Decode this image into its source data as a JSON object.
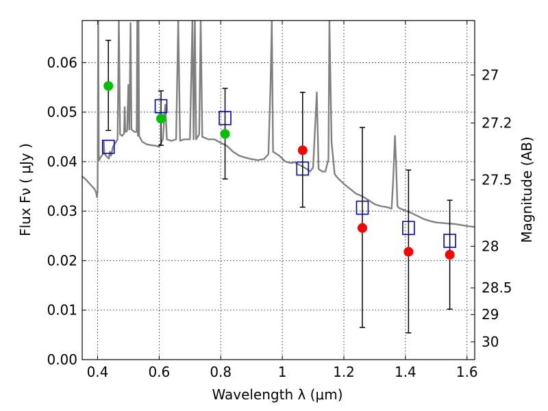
{
  "chart_data": {
    "type": "scatter",
    "xlabel": "Wavelength  λ (μm)",
    "ylabel": "Flux  Fν  ( μJy )",
    "y2label": "Magnitude (AB)",
    "xlim": [
      0.35,
      1.625
    ],
    "ylim": [
      0.0,
      0.0685
    ],
    "grid": true,
    "x_ticks": [
      0.4,
      0.6,
      0.8,
      1.0,
      1.2,
      1.4,
      1.6
    ],
    "x_tick_labels": [
      "0.4",
      "0.6",
      "0.8",
      "1",
      "1.2",
      "1.4",
      "1.6"
    ],
    "y_ticks": [
      0.0,
      0.01,
      0.02,
      0.03,
      0.04,
      0.05,
      0.06
    ],
    "y_tick_labels": [
      "0.00",
      "0.01",
      "0.02",
      "0.03",
      "0.04",
      "0.05",
      "0.06"
    ],
    "y2_ticks": [
      {
        "label": "27",
        "flux": 0.0575
      },
      {
        "label": "27.2",
        "flux": 0.0478
      },
      {
        "label": "27.5",
        "flux": 0.0363
      },
      {
        "label": "28",
        "flux": 0.0229
      },
      {
        "label": "28.5",
        "flux": 0.0145
      },
      {
        "label": "29",
        "flux": 0.0091
      },
      {
        "label": "30",
        "flux": 0.0036
      }
    ],
    "observed_points": [
      {
        "x": 0.435,
        "y": 0.0553,
        "err_low": 0.0463,
        "err_high": 0.0645,
        "color": "#00c000"
      },
      {
        "x": 0.606,
        "y": 0.0487,
        "err_low": 0.0433,
        "err_high": 0.0543,
        "color": "#00c000"
      },
      {
        "x": 0.814,
        "y": 0.0456,
        "err_low": 0.0365,
        "err_high": 0.0548,
        "color": "#00c000"
      },
      {
        "x": 1.066,
        "y": 0.0423,
        "err_low": 0.0308,
        "err_high": 0.054,
        "color": "#ff0000"
      },
      {
        "x": 1.26,
        "y": 0.0266,
        "err_low": 0.0065,
        "err_high": 0.0469,
        "color": "#ff0000"
      },
      {
        "x": 1.41,
        "y": 0.0218,
        "err_low": 0.0054,
        "err_high": 0.0383,
        "color": "#ff0000"
      },
      {
        "x": 1.544,
        "y": 0.0212,
        "err_low": 0.0102,
        "err_high": 0.0322,
        "color": "#ff0000"
      }
    ],
    "model_points": [
      {
        "x": 0.435,
        "y": 0.043
      },
      {
        "x": 0.606,
        "y": 0.0512
      },
      {
        "x": 0.814,
        "y": 0.0488
      },
      {
        "x": 1.066,
        "y": 0.0386
      },
      {
        "x": 1.26,
        "y": 0.0307
      },
      {
        "x": 1.41,
        "y": 0.0266
      },
      {
        "x": 1.544,
        "y": 0.024
      }
    ],
    "model_spectrum": [
      [
        0.35,
        0.037
      ],
      [
        0.36,
        0.0365
      ],
      [
        0.375,
        0.0355
      ],
      [
        0.385,
        0.0348
      ],
      [
        0.39,
        0.0345
      ],
      [
        0.395,
        0.0338
      ],
      [
        0.398,
        0.0328
      ],
      [
        0.4,
        0.034
      ],
      [
        0.402,
        0.0685
      ],
      [
        0.404,
        0.0402
      ],
      [
        0.41,
        0.0409
      ],
      [
        0.418,
        0.0416
      ],
      [
        0.42,
        0.044
      ],
      [
        0.422,
        0.0416
      ],
      [
        0.43,
        0.041
      ],
      [
        0.437,
        0.0406
      ],
      [
        0.44,
        0.042
      ],
      [
        0.444,
        0.0412
      ],
      [
        0.45,
        0.043
      ],
      [
        0.465,
        0.0445
      ],
      [
        0.469,
        0.0685
      ],
      [
        0.473,
        0.0455
      ],
      [
        0.48,
        0.0452
      ],
      [
        0.486,
        0.0457
      ],
      [
        0.488,
        0.051
      ],
      [
        0.49,
        0.046
      ],
      [
        0.496,
        0.0462
      ],
      [
        0.5,
        0.0555
      ],
      [
        0.503,
        0.0465
      ],
      [
        0.507,
        0.068
      ],
      [
        0.51,
        0.0465
      ],
      [
        0.52,
        0.046
      ],
      [
        0.527,
        0.046
      ],
      [
        0.529,
        0.0685
      ],
      [
        0.531,
        0.0452
      ],
      [
        0.533,
        0.0685
      ],
      [
        0.535,
        0.0452
      ],
      [
        0.545,
        0.044
      ],
      [
        0.56,
        0.0435
      ],
      [
        0.575,
        0.0433
      ],
      [
        0.59,
        0.0432
      ],
      [
        0.6,
        0.043
      ],
      [
        0.612,
        0.0445
      ],
      [
        0.62,
        0.0515
      ],
      [
        0.625,
        0.0445
      ],
      [
        0.64,
        0.0442
      ],
      [
        0.655,
        0.0445
      ],
      [
        0.662,
        0.0685
      ],
      [
        0.668,
        0.0442
      ],
      [
        0.68,
        0.0445
      ],
      [
        0.7,
        0.0445
      ],
      [
        0.708,
        0.0685
      ],
      [
        0.712,
        0.0445
      ],
      [
        0.716,
        0.0685
      ],
      [
        0.72,
        0.0445
      ],
      [
        0.73,
        0.0455
      ],
      [
        0.735,
        0.0685
      ],
      [
        0.74,
        0.045
      ],
      [
        0.76,
        0.0445
      ],
      [
        0.78,
        0.0445
      ],
      [
        0.8,
        0.0438
      ],
      [
        0.82,
        0.0432
      ],
      [
        0.84,
        0.042
      ],
      [
        0.86,
        0.0412
      ],
      [
        0.88,
        0.0408
      ],
      [
        0.9,
        0.0405
      ],
      [
        0.92,
        0.0403
      ],
      [
        0.94,
        0.0405
      ],
      [
        0.955,
        0.0415
      ],
      [
        0.962,
        0.056
      ],
      [
        0.966,
        0.0685
      ],
      [
        0.97,
        0.042
      ],
      [
        0.99,
        0.0412
      ],
      [
        1.01,
        0.04
      ],
      [
        1.03,
        0.0397
      ],
      [
        1.04,
        0.0399
      ],
      [
        1.05,
        0.0395
      ],
      [
        1.06,
        0.0392
      ],
      [
        1.08,
        0.0385
      ],
      [
        1.09,
        0.038
      ],
      [
        1.1,
        0.0388
      ],
      [
        1.112,
        0.054
      ],
      [
        1.118,
        0.0385
      ],
      [
        1.13,
        0.038
      ],
      [
        1.14,
        0.038
      ],
      [
        1.15,
        0.0405
      ],
      [
        1.153,
        0.0685
      ],
      [
        1.16,
        0.044
      ],
      [
        1.17,
        0.0375
      ],
      [
        1.18,
        0.0367
      ],
      [
        1.2,
        0.0355
      ],
      [
        1.22,
        0.0345
      ],
      [
        1.24,
        0.0335
      ],
      [
        1.26,
        0.033
      ],
      [
        1.28,
        0.0322
      ],
      [
        1.3,
        0.0314
      ],
      [
        1.32,
        0.031
      ],
      [
        1.34,
        0.0308
      ],
      [
        1.355,
        0.0305
      ],
      [
        1.36,
        0.036
      ],
      [
        1.366,
        0.0452
      ],
      [
        1.37,
        0.039
      ],
      [
        1.374,
        0.031
      ],
      [
        1.38,
        0.0306
      ],
      [
        1.4,
        0.0301
      ],
      [
        1.42,
        0.0296
      ],
      [
        1.44,
        0.029
      ],
      [
        1.46,
        0.0284
      ],
      [
        1.48,
        0.028
      ],
      [
        1.5,
        0.0277
      ],
      [
        1.52,
        0.0276
      ],
      [
        1.54,
        0.0275
      ],
      [
        1.56,
        0.0274
      ],
      [
        1.58,
        0.0272
      ],
      [
        1.6,
        0.027
      ],
      [
        1.625,
        0.0268
      ]
    ],
    "colors": {
      "spectrum": "#808080",
      "model_marker": "#0000cc",
      "errorbar": "#000000",
      "axes": "#000000"
    }
  }
}
